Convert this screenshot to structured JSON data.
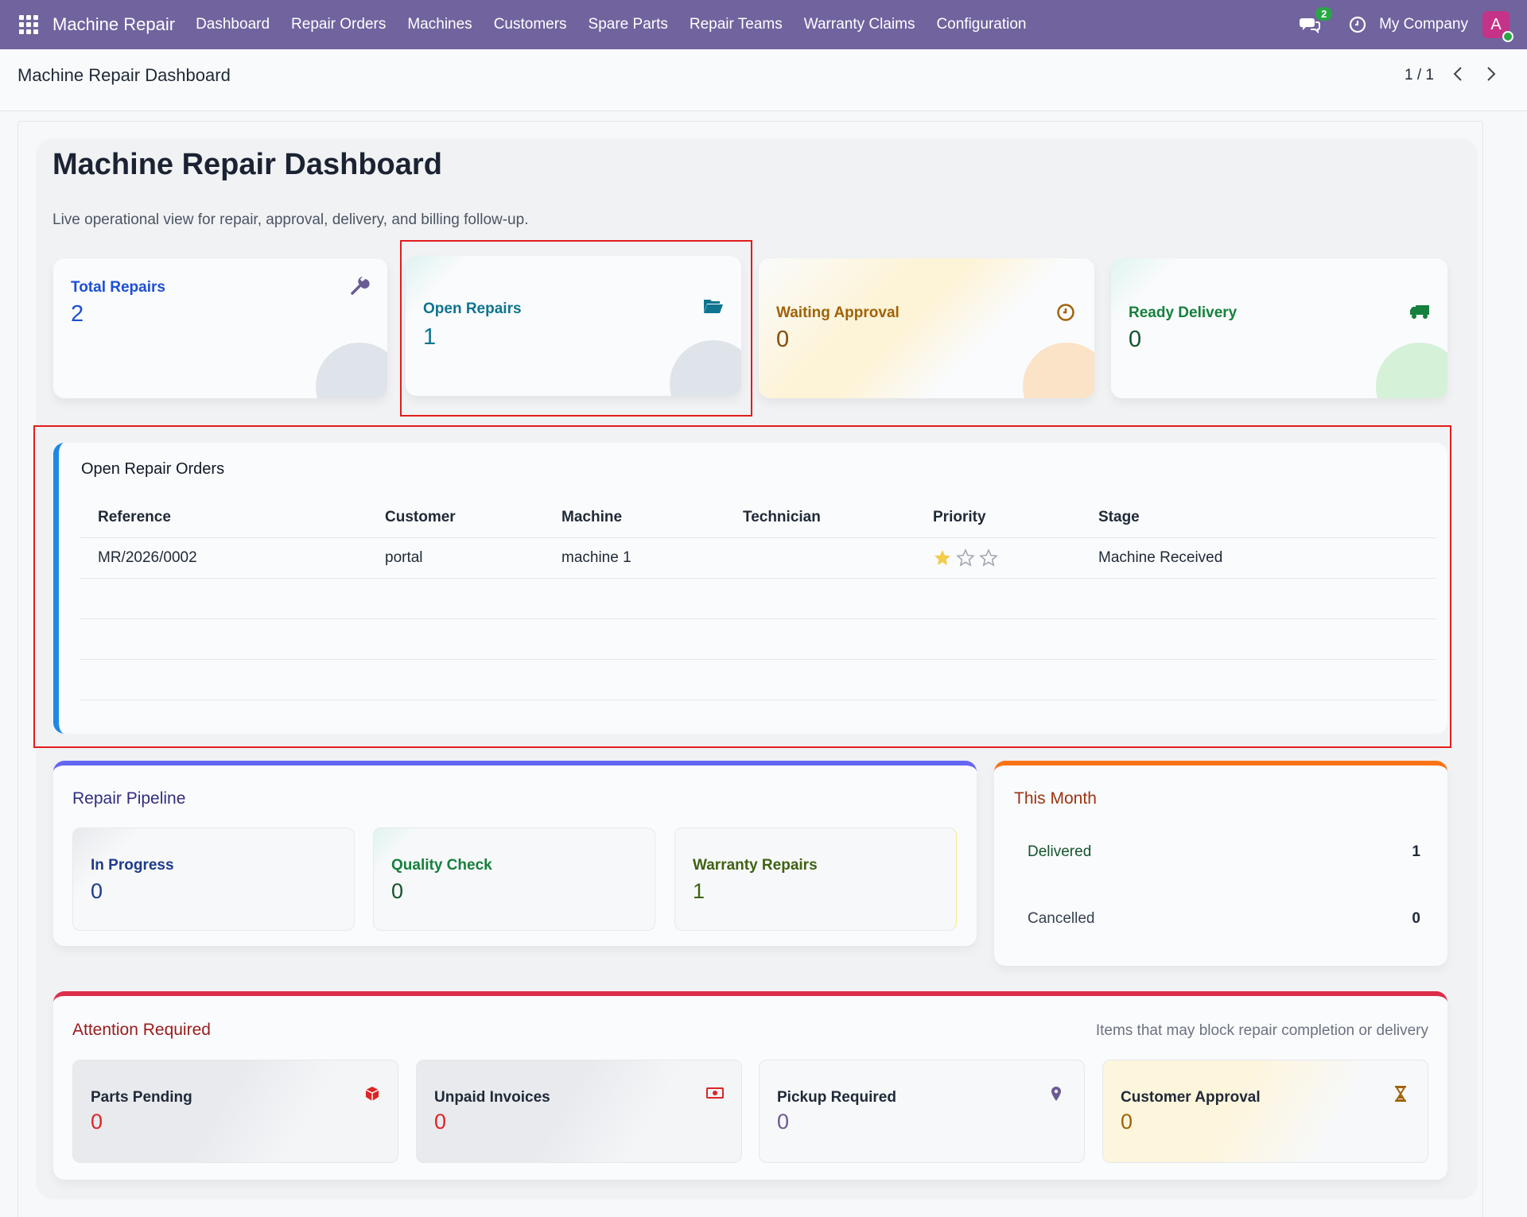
{
  "navbar": {
    "brand": "Machine Repair",
    "items": [
      "Dashboard",
      "Repair Orders",
      "Machines",
      "Customers",
      "Spare Parts",
      "Repair Teams",
      "Warranty Claims",
      "Configuration"
    ],
    "chat_count": "2",
    "company": "My Company",
    "avatar_letter": "A"
  },
  "control_panel": {
    "breadcrumb": "Machine Repair Dashboard",
    "pager": "1 / 1"
  },
  "dashboard": {
    "title": "Machine Repair Dashboard",
    "subtitle": "Live operational view for repair, approval, delivery, and billing follow-up.",
    "kpis": [
      {
        "label": "Total Repairs",
        "value": "2",
        "icon": "wrench-icon",
        "color": "#1d4ed8"
      },
      {
        "label": "Open Repairs",
        "value": "1",
        "icon": "folder-open-icon",
        "color": "#0e7490"
      },
      {
        "label": "Waiting Approval",
        "value": "0",
        "icon": "clock-icon",
        "color": "#a16207"
      },
      {
        "label": "Ready Delivery",
        "value": "0",
        "icon": "truck-icon",
        "color": "#15803d"
      }
    ]
  },
  "open_orders": {
    "title": "Open Repair Orders",
    "columns": [
      "Reference",
      "Customer",
      "Machine",
      "Technician",
      "Priority",
      "Stage"
    ],
    "rows": [
      {
        "reference": "MR/2026/0002",
        "customer": "portal",
        "machine": "machine 1",
        "technician": "",
        "priority": 1,
        "stage": "Machine Received"
      }
    ]
  },
  "pipeline": {
    "title": "Repair Pipeline",
    "cards": [
      {
        "label": "In Progress",
        "value": "0",
        "color": "#1e3a8a"
      },
      {
        "label": "Quality Check",
        "value": "0",
        "color": "#15803d"
      },
      {
        "label": "Warranty Repairs",
        "value": "1",
        "color": "#3f6212"
      }
    ]
  },
  "this_month": {
    "title": "This Month",
    "rows": [
      {
        "label": "Delivered",
        "value": "1"
      },
      {
        "label": "Cancelled",
        "value": "0"
      }
    ]
  },
  "attention": {
    "title": "Attention Required",
    "note": "Items that may block repair completion or delivery",
    "cards": [
      {
        "label": "Parts Pending",
        "value": "0",
        "icon": "box-icon",
        "color": "#dc2626"
      },
      {
        "label": "Unpaid Invoices",
        "value": "0",
        "icon": "money-icon",
        "color": "#dc2626"
      },
      {
        "label": "Pickup Required",
        "value": "0",
        "icon": "map-pin-icon",
        "color": "#6b5b95"
      },
      {
        "label": "Customer Approval",
        "value": "0",
        "icon": "hourglass-icon",
        "color": "#a16207"
      }
    ]
  }
}
